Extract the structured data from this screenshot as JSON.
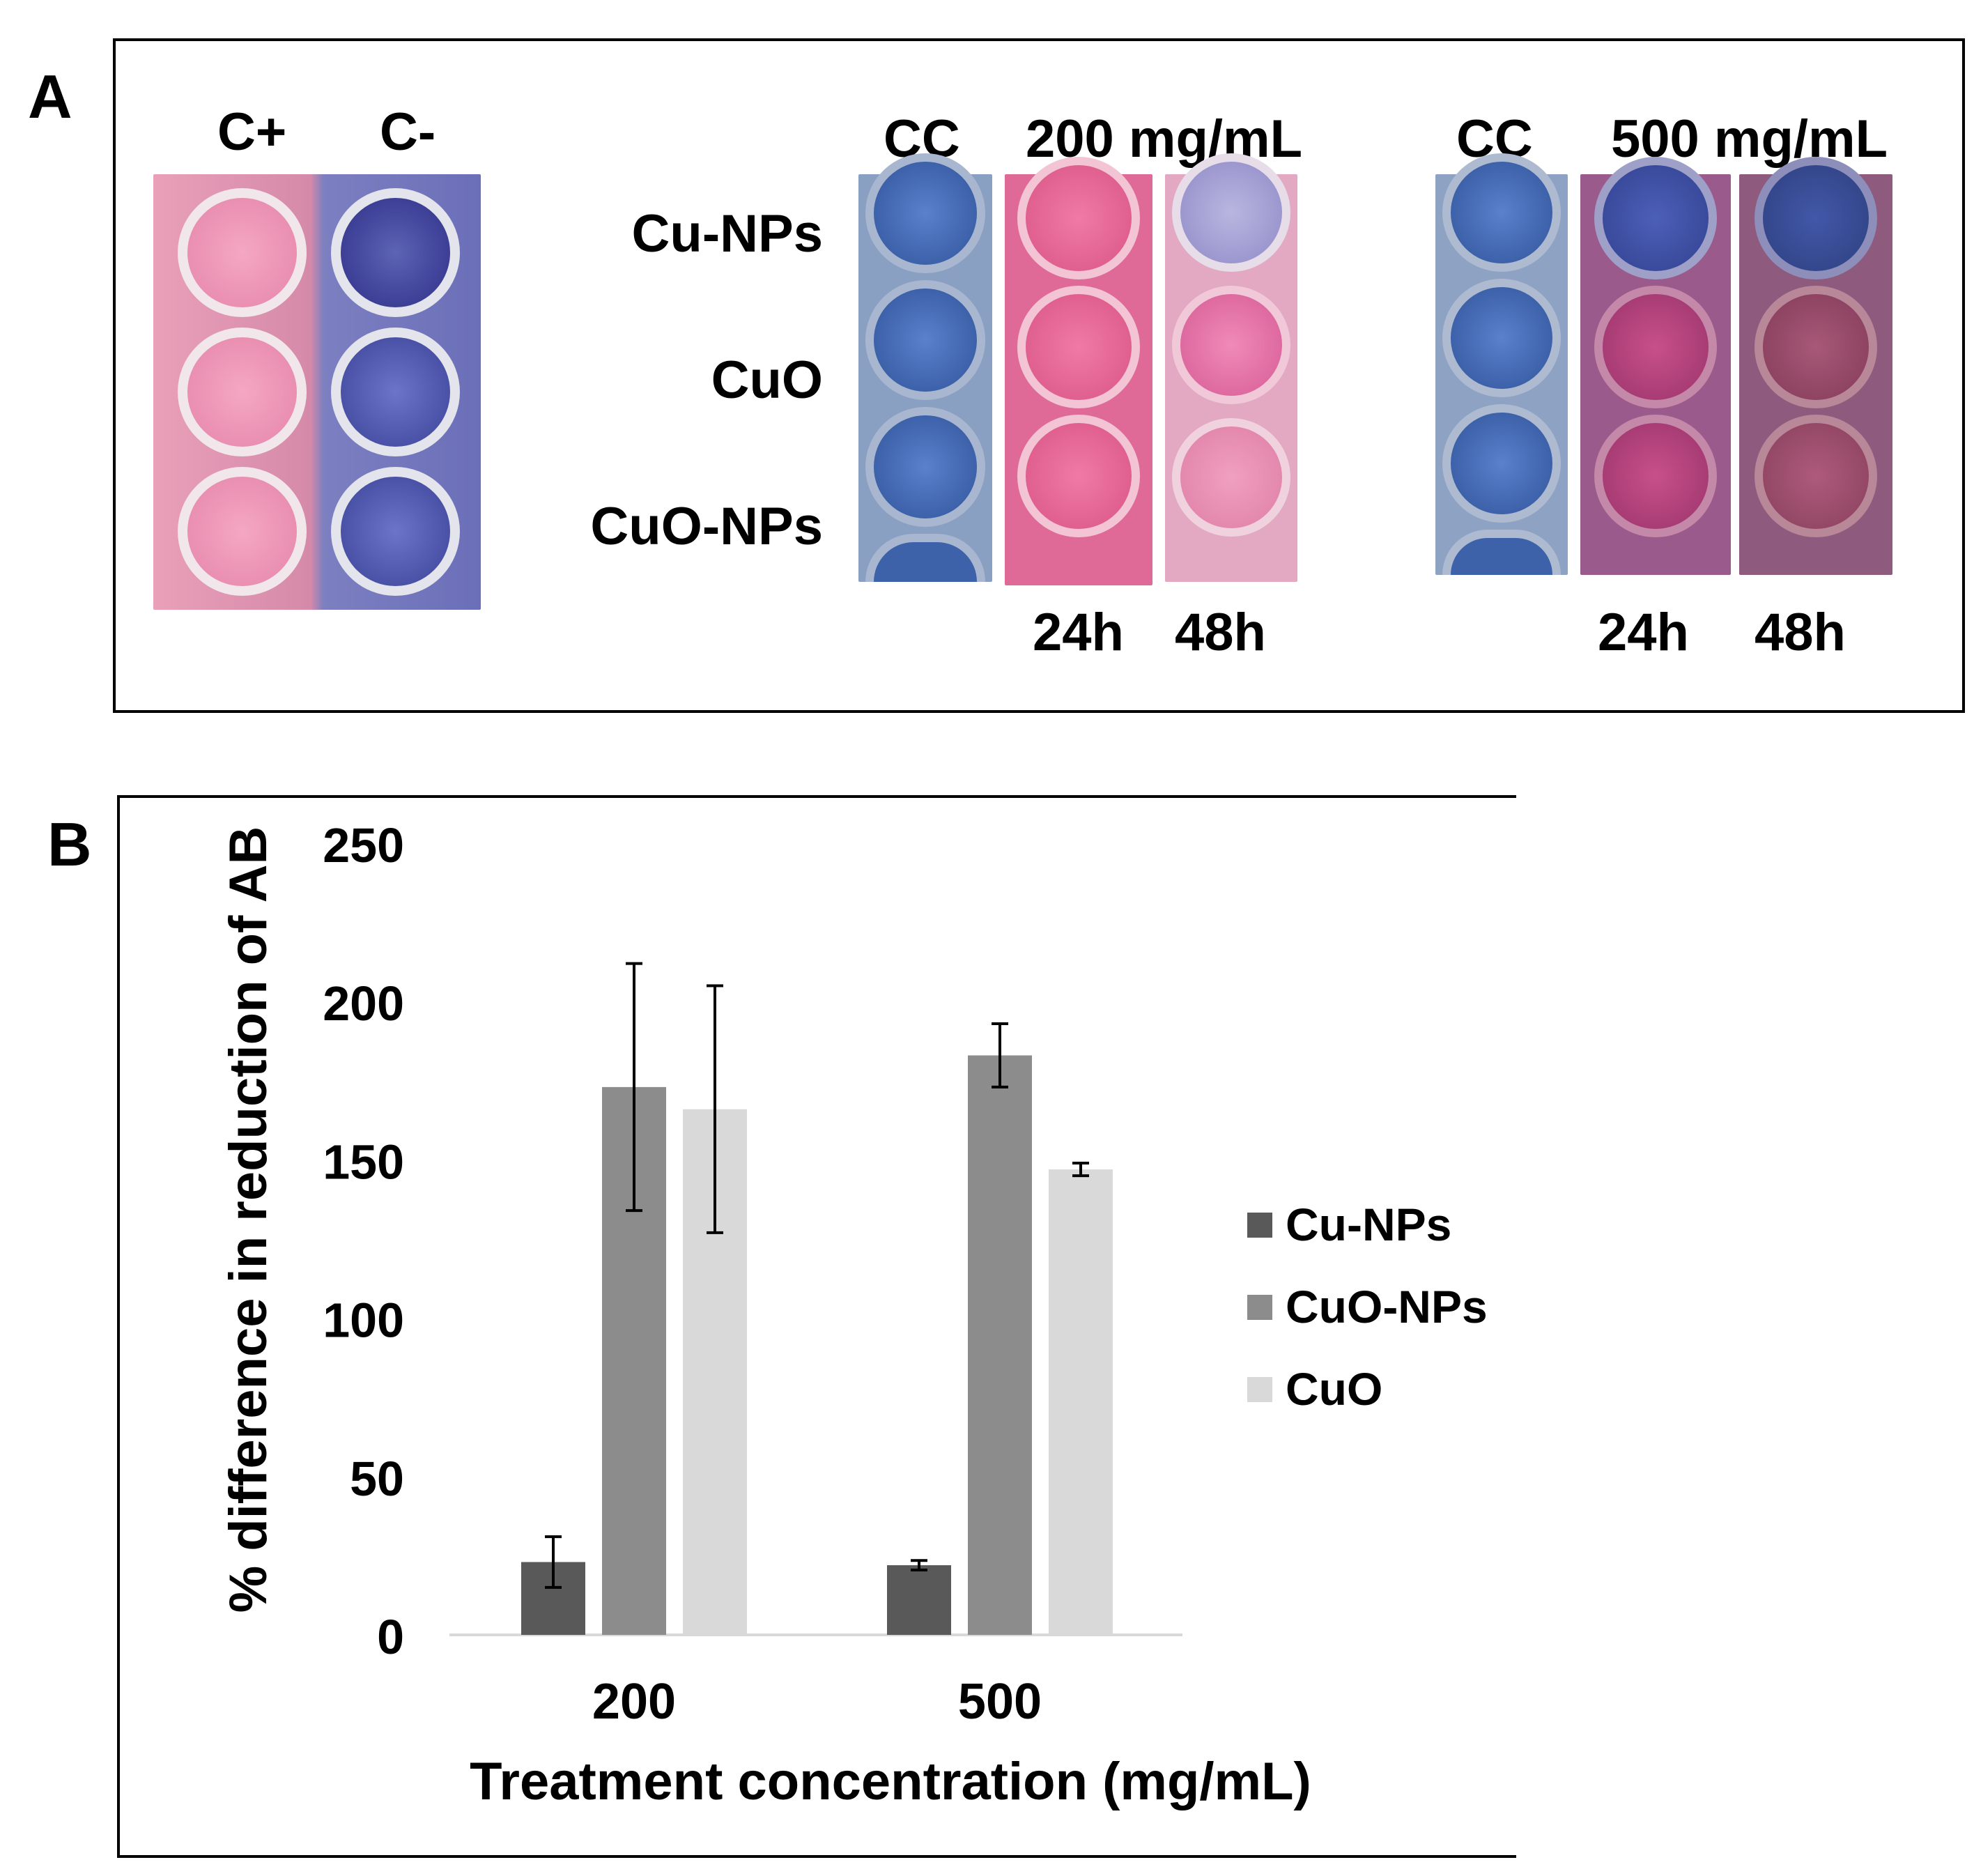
{
  "figure": {
    "panel_a_label": "A",
    "panel_b_label": "B"
  },
  "panel_a": {
    "controls": {
      "pos_label": "C+",
      "neg_label": "C-"
    },
    "group1": {
      "cc_label": "CC",
      "conc_label": "200 mg/mL",
      "time_labels": [
        "24h",
        "48h"
      ]
    },
    "group2": {
      "cc_label": "CC",
      "conc_label": "500 mg/mL",
      "time_labels": [
        "24h",
        "48h"
      ]
    },
    "row_labels": [
      "Cu-NPs",
      "CuO",
      "CuO-NPs"
    ],
    "colors": {
      "blue_well": "#4a6fb8",
      "pink_well": "#e8709a",
      "magenta_well": "#b04878",
      "lavender_well": "#a9a8d8",
      "light_pink_well": "#e994b8"
    }
  },
  "chart_data": {
    "type": "bar",
    "title": "",
    "xlabel": "Treatment concentration (mg/mL)",
    "ylabel": "% difference in reduction of AB",
    "ylim": [
      0,
      250
    ],
    "yticks": [
      0,
      50,
      100,
      150,
      200,
      250
    ],
    "categories": [
      "200",
      "500"
    ],
    "grid": false,
    "legend_position": "right",
    "series": [
      {
        "name": "Cu-NPs",
        "color": "#595959",
        "values": [
          23,
          22
        ],
        "errors": [
          8,
          1.5
        ]
      },
      {
        "name": "CuO-NPs",
        "color": "#8c8c8c",
        "values": [
          173,
          183
        ],
        "errors": [
          39,
          10
        ]
      },
      {
        "name": "CuO",
        "color": "#d9d9d9",
        "values": [
          166,
          147
        ],
        "errors": [
          39,
          2
        ]
      }
    ]
  }
}
